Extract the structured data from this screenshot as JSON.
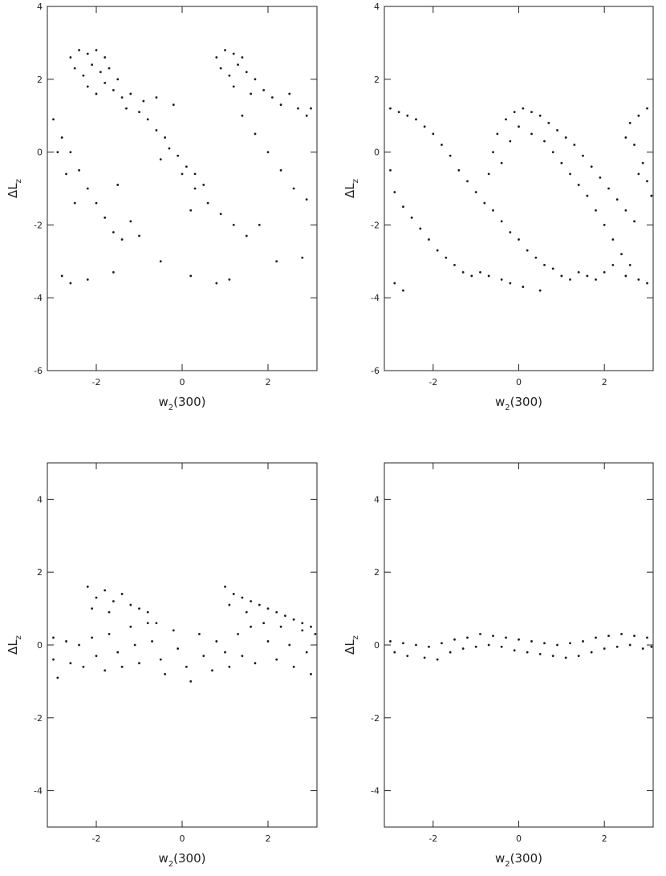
{
  "chart_data": [
    {
      "type": "scatter",
      "color": "#1a1a1a",
      "xlabel": [
        "w",
        "2",
        "(300)"
      ],
      "ylabel": [
        "ΔL",
        "z"
      ],
      "xlim": [
        -3.14,
        3.14
      ],
      "ylim": [
        -6,
        4
      ],
      "xticks": [
        -2,
        0,
        2
      ],
      "yticks": [
        -6,
        -4,
        -2,
        0,
        2,
        4
      ],
      "x": [
        -2.6,
        -2.4,
        -2.2,
        -2.0,
        -1.8,
        -2.5,
        -2.3,
        -2.1,
        -1.9,
        -1.7,
        -2.2,
        -2.0,
        -1.8,
        -1.6,
        -1.5,
        -1.4,
        -1.2,
        -1.3,
        -1.0,
        -0.8,
        -0.9,
        -0.6,
        -0.4,
        -0.3,
        -0.1,
        0.1,
        0.3,
        0.5,
        0.8,
        1.0,
        1.2,
        1.4,
        0.9,
        1.1,
        1.3,
        1.5,
        1.7,
        1.2,
        1.6,
        1.9,
        2.1,
        2.3,
        2.5,
        2.7,
        2.9,
        3.0,
        1.4,
        1.7,
        2.0,
        2.3,
        2.6,
        2.9,
        -0.6,
        -0.2,
        -3.0,
        -2.8,
        -2.6,
        -2.4,
        -2.2,
        -2.0,
        -1.8,
        -1.6,
        -1.4,
        -2.9,
        -2.7,
        -2.5,
        -1.2,
        -1.0,
        0.0,
        0.3,
        0.6,
        0.9,
        1.2,
        1.5,
        1.8,
        0.2,
        -0.5,
        -1.5,
        -2.8,
        -2.6,
        -2.2,
        -1.6,
        -0.5,
        0.2,
        0.8,
        1.1,
        2.2,
        2.8
      ],
      "y": [
        2.6,
        2.8,
        2.7,
        2.8,
        2.6,
        2.3,
        2.1,
        2.4,
        2.2,
        2.3,
        1.8,
        1.6,
        1.9,
        1.7,
        2.0,
        1.5,
        1.6,
        1.2,
        1.1,
        0.9,
        1.4,
        0.6,
        0.4,
        0.1,
        -0.1,
        -0.4,
        -0.6,
        -0.9,
        2.6,
        2.8,
        2.7,
        2.6,
        2.3,
        2.1,
        2.4,
        2.2,
        2.0,
        1.8,
        1.6,
        1.7,
        1.5,
        1.3,
        1.6,
        1.2,
        1.0,
        1.2,
        1.0,
        0.5,
        0.0,
        -0.5,
        -1.0,
        -1.3,
        1.5,
        1.3,
        0.9,
        0.4,
        0.0,
        -0.5,
        -1.0,
        -1.4,
        -1.8,
        -2.2,
        -2.4,
        0.0,
        -0.6,
        -1.4,
        -1.9,
        -2.3,
        -0.6,
        -1.0,
        -1.4,
        -1.7,
        -2.0,
        -2.3,
        -2.0,
        -1.6,
        -0.2,
        -0.9,
        -3.4,
        -3.6,
        -3.5,
        -3.3,
        -3.0,
        -3.4,
        -3.6,
        -3.5,
        -3.0,
        -2.9
      ]
    },
    {
      "type": "scatter",
      "color": "#1a1a1a",
      "xlabel": [
        "w",
        "2",
        "(300)"
      ],
      "ylabel": [
        "ΔL",
        "z"
      ],
      "xlim": [
        -3.14,
        3.14
      ],
      "ylim": [
        -6,
        4
      ],
      "xticks": [
        -2,
        0,
        2
      ],
      "yticks": [
        -6,
        -4,
        -2,
        0,
        2,
        4
      ],
      "x": [
        -3.0,
        -2.8,
        -2.6,
        -2.4,
        -2.2,
        -2.0,
        -1.8,
        -1.6,
        -1.4,
        -1.2,
        -1.0,
        -0.8,
        -0.6,
        -0.4,
        -0.2,
        0.0,
        0.2,
        0.4,
        0.6,
        0.8,
        1.0,
        1.2,
        1.4,
        1.6,
        1.8,
        2.0,
        2.2,
        2.5,
        2.8,
        3.0,
        -3.0,
        -2.9,
        -2.7,
        -2.5,
        -2.3,
        -2.1,
        -1.9,
        -1.7,
        -1.5,
        -1.3,
        -1.1,
        -0.9,
        -0.7,
        -0.4,
        -0.2,
        0.1,
        0.5,
        -2.9,
        -2.7,
        -0.7,
        -0.6,
        -0.5,
        -0.3,
        -0.1,
        0.1,
        0.3,
        0.5,
        0.7,
        0.9,
        1.1,
        1.3,
        1.5,
        1.7,
        1.9,
        2.1,
        2.3,
        2.5,
        2.7,
        -0.4,
        -0.2,
        0.0,
        0.3,
        0.6,
        0.8,
        1.0,
        1.2,
        1.4,
        1.6,
        1.8,
        2.0,
        2.2,
        2.4,
        2.6,
        2.5,
        2.6,
        2.8,
        3.0,
        2.7,
        2.9,
        3.0,
        3.1,
        2.8
      ],
      "y": [
        1.2,
        1.1,
        1.0,
        0.9,
        0.7,
        0.5,
        0.2,
        -0.1,
        -0.5,
        -0.8,
        -1.1,
        -1.4,
        -1.6,
        -1.9,
        -2.2,
        -2.4,
        -2.7,
        -2.9,
        -3.1,
        -3.2,
        -3.4,
        -3.5,
        -3.3,
        -3.4,
        -3.5,
        -3.3,
        -3.1,
        -3.4,
        -3.5,
        -3.6,
        -0.5,
        -1.1,
        -1.5,
        -1.8,
        -2.1,
        -2.4,
        -2.7,
        -2.9,
        -3.1,
        -3.3,
        -3.4,
        -3.3,
        -3.4,
        -3.5,
        -3.6,
        -3.7,
        -3.8,
        -3.6,
        -3.8,
        -0.6,
        0.0,
        0.5,
        0.9,
        1.1,
        1.2,
        1.1,
        1.0,
        0.8,
        0.6,
        0.4,
        0.2,
        -0.1,
        -0.4,
        -0.7,
        -1.0,
        -1.3,
        -1.6,
        -1.9,
        -0.3,
        0.3,
        0.7,
        0.5,
        0.3,
        0.0,
        -0.3,
        -0.6,
        -0.9,
        -1.2,
        -1.6,
        -2.0,
        -2.4,
        -2.8,
        -3.1,
        0.4,
        0.8,
        1.0,
        1.2,
        0.2,
        -0.3,
        -0.8,
        -1.2,
        -0.6
      ]
    },
    {
      "type": "scatter",
      "color": "#1a1a1a",
      "xlabel": [
        "w",
        "2",
        "(300)"
      ],
      "ylabel": [
        "ΔL",
        "z"
      ],
      "xlim": [
        -3.14,
        3.14
      ],
      "ylim": [
        -5,
        5
      ],
      "xticks": [
        -2,
        0,
        2
      ],
      "yticks": [
        -4,
        -2,
        0,
        2,
        4
      ],
      "x": [
        -3.0,
        -3.0,
        -2.9,
        -2.7,
        -2.6,
        -2.4,
        -2.3,
        -2.1,
        -2.0,
        -1.8,
        -1.7,
        -1.5,
        -1.4,
        -1.2,
        -1.1,
        -1.0,
        -0.8,
        -0.7,
        -0.5,
        -0.4,
        -0.2,
        -0.1,
        0.1,
        0.2,
        0.4,
        0.5,
        0.7,
        0.8,
        1.0,
        1.1,
        1.3,
        1.4,
        1.6,
        1.7,
        1.9,
        2.0,
        2.2,
        2.3,
        2.5,
        2.6,
        2.8,
        2.9,
        3.0,
        3.1,
        -2.2,
        -2.0,
        -1.8,
        -1.6,
        -1.4,
        -1.2,
        -1.0,
        -0.8,
        -0.6,
        -2.1,
        -1.7,
        1.0,
        1.2,
        1.4,
        1.6,
        1.8,
        2.0,
        2.2,
        2.4,
        2.6,
        2.8,
        3.0,
        1.1,
        1.5
      ],
      "y": [
        0.2,
        -0.4,
        -0.9,
        0.1,
        -0.5,
        0.0,
        -0.6,
        0.2,
        -0.3,
        -0.7,
        0.3,
        -0.2,
        -0.6,
        0.5,
        0.0,
        -0.5,
        0.6,
        0.1,
        -0.4,
        -0.8,
        0.4,
        -0.1,
        -0.6,
        -1.0,
        0.3,
        -0.3,
        -0.7,
        0.1,
        -0.2,
        -0.6,
        0.3,
        -0.3,
        0.5,
        -0.5,
        0.6,
        0.1,
        -0.4,
        0.5,
        0.0,
        -0.6,
        0.4,
        -0.2,
        -0.8,
        0.3,
        1.6,
        1.3,
        1.5,
        1.2,
        1.4,
        1.1,
        1.0,
        0.9,
        0.6,
        1.0,
        0.9,
        1.6,
        1.4,
        1.3,
        1.2,
        1.1,
        1.0,
        0.9,
        0.8,
        0.7,
        0.6,
        0.5,
        1.1,
        0.9
      ]
    },
    {
      "type": "scatter",
      "color": "#1a1a1a",
      "xlabel": [
        "w",
        "2",
        "(300)"
      ],
      "ylabel": [
        "ΔL",
        "z"
      ],
      "xlim": [
        -3.14,
        3.14
      ],
      "ylim": [
        -5,
        5
      ],
      "xticks": [
        -2,
        0,
        2
      ],
      "yticks": [
        -4,
        -2,
        0,
        2,
        4
      ],
      "x": [
        -3.0,
        -2.9,
        -2.7,
        -2.6,
        -2.4,
        -2.2,
        -2.1,
        -1.9,
        -1.8,
        -1.6,
        -1.5,
        -1.3,
        -1.2,
        -1.0,
        -0.9,
        -0.7,
        -0.6,
        -0.4,
        -0.3,
        -0.1,
        0.0,
        0.2,
        0.3,
        0.5,
        0.6,
        0.8,
        0.9,
        1.1,
        1.2,
        1.4,
        1.5,
        1.7,
        1.8,
        2.0,
        2.1,
        2.3,
        2.4,
        2.6,
        2.7,
        2.9,
        3.0,
        3.1
      ],
      "y": [
        0.1,
        -0.2,
        0.05,
        -0.3,
        0.0,
        -0.35,
        -0.05,
        -0.4,
        0.05,
        -0.2,
        0.15,
        -0.1,
        0.2,
        -0.05,
        0.3,
        0.0,
        0.25,
        -0.05,
        0.2,
        -0.15,
        0.15,
        -0.2,
        0.1,
        -0.25,
        0.05,
        -0.3,
        0.0,
        -0.35,
        0.05,
        -0.3,
        0.1,
        -0.2,
        0.2,
        -0.1,
        0.25,
        -0.05,
        0.3,
        0.0,
        0.25,
        -0.1,
        0.2,
        -0.05
      ]
    }
  ]
}
